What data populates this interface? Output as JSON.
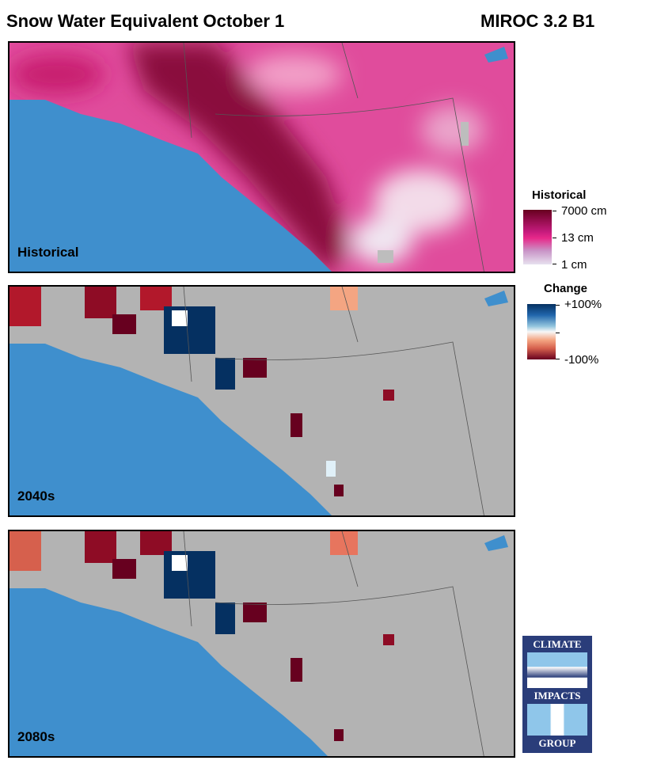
{
  "header": {
    "title": "Snow Water Equivalent October 1",
    "model": "MIROC 3.2 B1"
  },
  "panels": [
    {
      "label": "Historical"
    },
    {
      "label": "2040s"
    },
    {
      "label": "2080s"
    }
  ],
  "legend_historical": {
    "title": "Historical",
    "ticks": [
      "7000 cm",
      "13 cm",
      "1 cm"
    ],
    "colors": [
      "#67001f",
      "#e7298a",
      "#e7e1ef"
    ]
  },
  "legend_change": {
    "title": "Change",
    "ticks": [
      "+100%",
      "-100%"
    ],
    "colors": [
      "#053061",
      "#f7f7f7",
      "#67001f"
    ]
  },
  "logo": {
    "text_top": "CLIMATE",
    "text_mid": "IMPACTS",
    "text_bottom": "GROUP"
  },
  "colors": {
    "ocean": "#3f8fcd",
    "land": "#b3b3b3"
  }
}
